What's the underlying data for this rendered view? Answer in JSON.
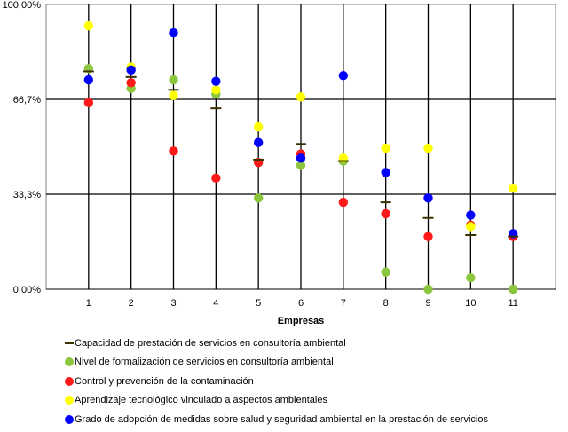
{
  "chart_data": {
    "type": "scatter",
    "title": "",
    "xlabel": "Empresas",
    "ylabel": "",
    "categories": [
      "1",
      "2",
      "3",
      "4",
      "5",
      "6",
      "7",
      "8",
      "9",
      "10",
      "11"
    ],
    "y_ticks": [
      "0,00%",
      "33,3%",
      "66,7%",
      "100,00%"
    ],
    "ylim": [
      0,
      100
    ],
    "grid": "vertical lines at each category, horizontal lines at 33,3% and 66,7%",
    "legend_position": "bottom",
    "series": [
      {
        "name": "Capacidad de prestación de servicios en consultoría ambiental",
        "marker": "dash",
        "color": "#3a3000",
        "values": [
          76.5,
          74.5,
          70,
          63.5,
          45.5,
          51,
          45,
          30.5,
          25,
          19,
          18.5
        ]
      },
      {
        "name": "Nivel de formalización de servicios en consultoría ambiental",
        "marker": "circle",
        "color": "#8cc63f",
        "values": [
          77.5,
          70.5,
          73.5,
          68.5,
          32,
          43.5,
          45,
          6,
          0,
          4,
          0
        ]
      },
      {
        "name": "Control y prevención de la contaminación",
        "marker": "circle",
        "color": "#ff1a1a",
        "values": [
          65.5,
          72.5,
          48.5,
          39,
          44.5,
          47.5,
          30.5,
          26.5,
          18.5,
          22.5,
          18.5
        ]
      },
      {
        "name": "Aprendizaje tecnológico vinculado a aspectos ambientales",
        "marker": "circle",
        "color": "#ffff00",
        "values": [
          92.5,
          78,
          68,
          70,
          57,
          67.5,
          46,
          49.5,
          49.5,
          22,
          35.5
        ]
      },
      {
        "name": "Grado de adopción de medidas sobre salud y seguridad ambiental en la prestación de servicios",
        "marker": "circle",
        "color": "#0000ff",
        "values": [
          73.5,
          77,
          90,
          73,
          51.5,
          46,
          75,
          41,
          32,
          26,
          19.5
        ]
      }
    ]
  }
}
